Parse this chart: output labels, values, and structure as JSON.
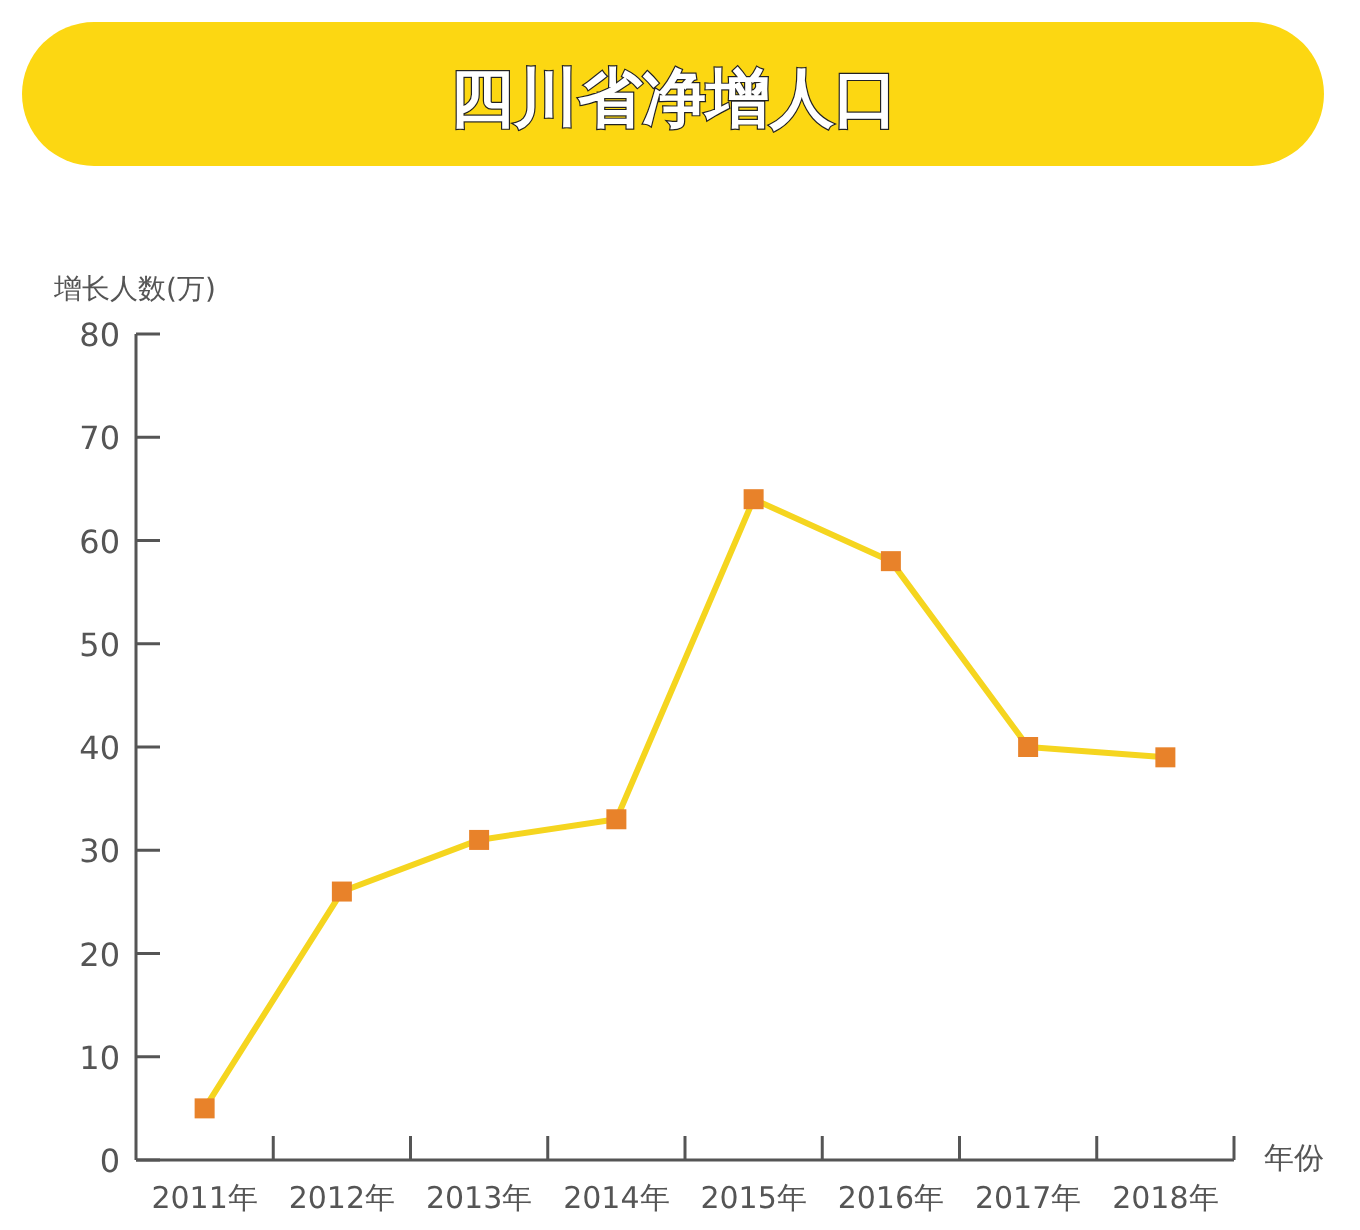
{
  "chart_data": {
    "type": "line",
    "title": "四川省净增人口",
    "ylabel": "增长人数(万)",
    "xlabel": "年份",
    "categories": [
      "2011年",
      "2012年",
      "2013年",
      "2014年",
      "2015年",
      "2016年",
      "2017年",
      "2018年"
    ],
    "series": [
      {
        "color": "#f5d51f",
        "values": [
          5,
          26,
          31,
          33,
          64,
          58,
          40,
          39
        ]
      }
    ],
    "ylim": [
      0,
      80
    ],
    "yticks": [
      0,
      10,
      20,
      30,
      40,
      50,
      60,
      70,
      80
    ],
    "marker": "square",
    "line_style": "solid"
  }
}
